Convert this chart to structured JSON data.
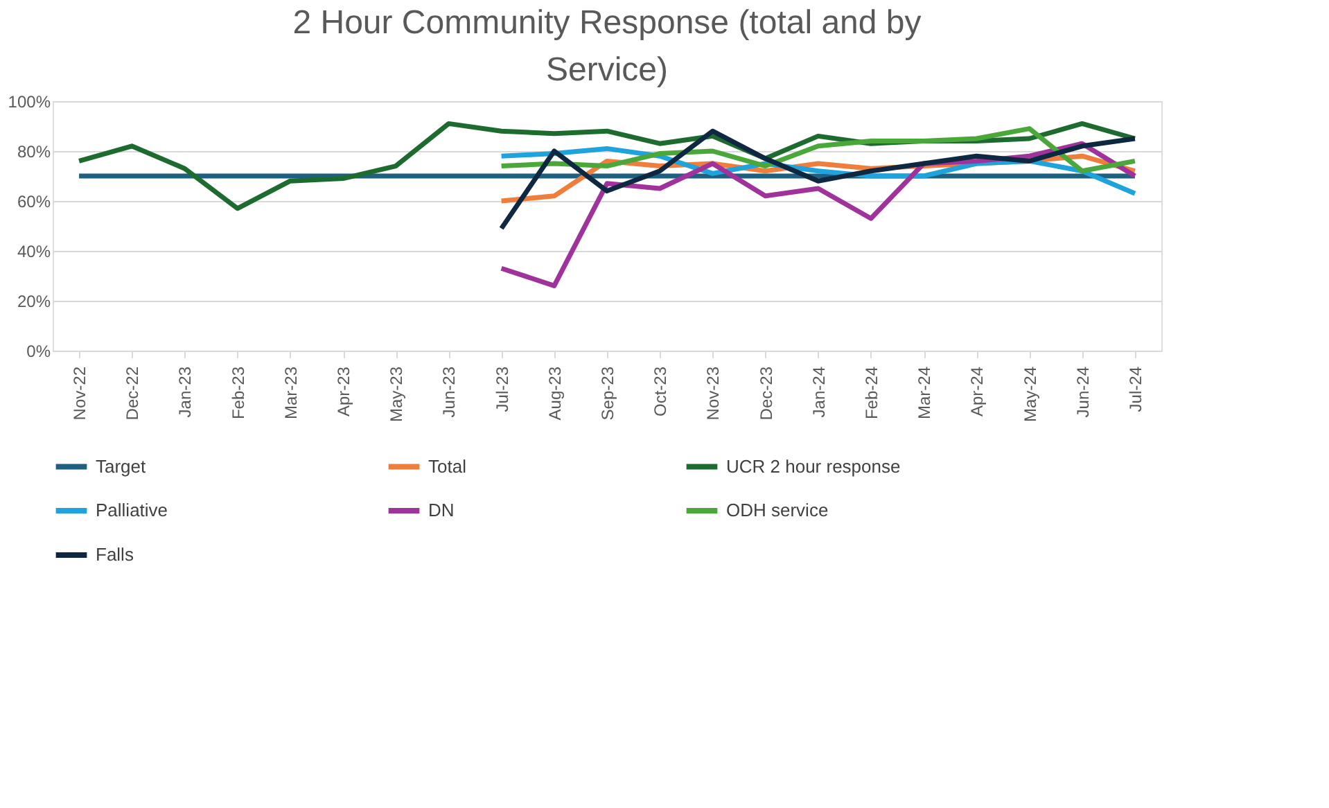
{
  "chart_data": {
    "type": "line",
    "title": "2 Hour Community Response (total and by Service)",
    "categories": [
      "Nov-22",
      "Dec-22",
      "Jan-23",
      "Feb-23",
      "Mar-23",
      "Apr-23",
      "May-23",
      "Jun-23",
      "Jul-23",
      "Aug-23",
      "Sep-23",
      "Oct-23",
      "Nov-23",
      "Dec-23",
      "Jan-24",
      "Feb-24",
      "Mar-24",
      "Apr-24",
      "May-24",
      "Jun-24",
      "Jul-24"
    ],
    "series": [
      {
        "name": "Target",
        "color": "#1f5f7f",
        "values": [
          70,
          70,
          70,
          70,
          70,
          70,
          70,
          70,
          70,
          70,
          70,
          70,
          70,
          70,
          70,
          70,
          70,
          70,
          70,
          70,
          70
        ]
      },
      {
        "name": "Total",
        "color": "#ef7d3c",
        "values": [
          null,
          null,
          null,
          null,
          null,
          null,
          null,
          null,
          60,
          62,
          76,
          74,
          75,
          72,
          75,
          73,
          74,
          75,
          76,
          78,
          72
        ]
      },
      {
        "name": "UCR 2 hour response",
        "color": "#1e6b30",
        "values": [
          76,
          82,
          73,
          57,
          68,
          69,
          74,
          91,
          88,
          87,
          88,
          83,
          86,
          77,
          86,
          83,
          84,
          84,
          85,
          91,
          85
        ]
      },
      {
        "name": "Palliative",
        "color": "#1ea3dc",
        "values": [
          null,
          null,
          null,
          null,
          null,
          null,
          null,
          null,
          78,
          79,
          81,
          78,
          71,
          75,
          72,
          70,
          70,
          75,
          76,
          72,
          63
        ]
      },
      {
        "name": "DN",
        "color": "#a0329c",
        "values": [
          null,
          null,
          null,
          null,
          null,
          null,
          null,
          null,
          33,
          26,
          67,
          65,
          75,
          62,
          65,
          53,
          75,
          76,
          78,
          83,
          70
        ]
      },
      {
        "name": "ODH service",
        "color": "#4aa83a",
        "values": [
          null,
          null,
          null,
          null,
          null,
          null,
          null,
          null,
          74,
          75,
          74,
          79,
          80,
          74,
          82,
          84,
          84,
          85,
          89,
          72,
          76
        ]
      },
      {
        "name": "Falls",
        "color": "#0e2841",
        "values": [
          null,
          null,
          null,
          null,
          null,
          null,
          null,
          null,
          49,
          80,
          64,
          72,
          88,
          77,
          68,
          72,
          75,
          78,
          76,
          82,
          85
        ]
      }
    ],
    "ylim": [
      0,
      100
    ],
    "yticks": [
      {
        "value": 0,
        "label": "0%"
      },
      {
        "value": 20,
        "label": "20%"
      },
      {
        "value": 40,
        "label": "40%"
      },
      {
        "value": 60,
        "label": "60%"
      },
      {
        "value": 80,
        "label": "80%"
      },
      {
        "value": 100,
        "label": "100%"
      }
    ],
    "grid": "y",
    "legend": "bottom",
    "marker": "none",
    "line_style": "solid"
  }
}
